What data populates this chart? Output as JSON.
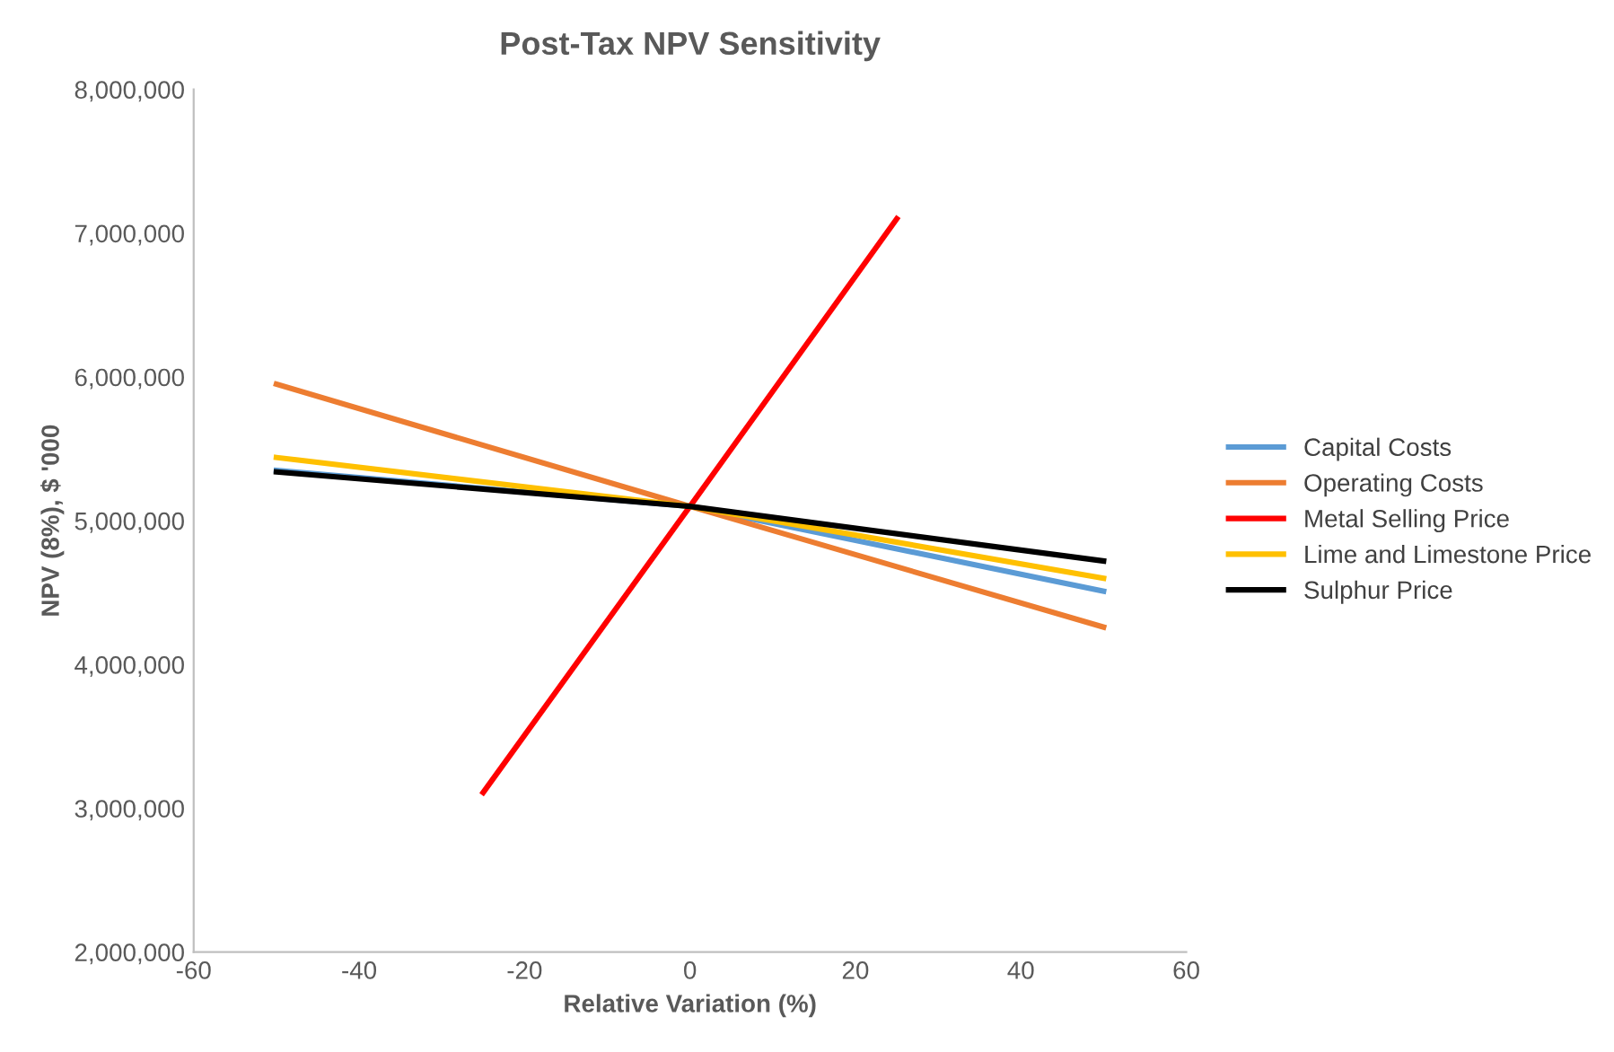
{
  "chart_data": {
    "type": "line",
    "title": "Post-Tax NPV Sensitivity",
    "xlabel": "Relative Variation (%)",
    "ylabel": "NPV (8%), $ '000",
    "xlim": [
      -60,
      60
    ],
    "xticks": [
      -60,
      -40,
      -20,
      0,
      20,
      40,
      60
    ],
    "ylim": [
      2000000,
      8000000
    ],
    "yticks": [
      {
        "value": 2000000,
        "label": "2,000,000"
      },
      {
        "value": 3000000,
        "label": "3,000,000"
      },
      {
        "value": 4000000,
        "label": "4,000,000"
      },
      {
        "value": 5000000,
        "label": "5,000,000"
      },
      {
        "value": 6000000,
        "label": "6,000,000"
      },
      {
        "value": 7000000,
        "label": "7,000,000"
      },
      {
        "value": 8000000,
        "label": "8,000,000"
      }
    ],
    "grid": false,
    "legend": "right",
    "marker": "none",
    "line_style": "solid",
    "series": [
      {
        "name": "Capital Costs",
        "color": "#5b9bd5",
        "x": [
          -50,
          0,
          50
        ],
        "values": [
          5350000,
          5100000,
          4510000
        ]
      },
      {
        "name": "Operating Costs",
        "color": "#ed7d31",
        "x": [
          -50,
          0,
          50
        ],
        "values": [
          5950000,
          5100000,
          4260000
        ]
      },
      {
        "name": "Metal Selling Price",
        "color": "#ff0000",
        "x": [
          -25,
          0,
          25
        ],
        "values": [
          3110000,
          5100000,
          7100000
        ]
      },
      {
        "name": "Lime and Limestone Price",
        "color": "#ffc000",
        "x": [
          -50,
          0,
          50
        ],
        "values": [
          5440000,
          5100000,
          4600000
        ]
      },
      {
        "name": "Sulphur Price",
        "color": "#000000",
        "x": [
          -50,
          0,
          50
        ],
        "values": [
          5340000,
          5100000,
          4720000
        ]
      }
    ]
  }
}
